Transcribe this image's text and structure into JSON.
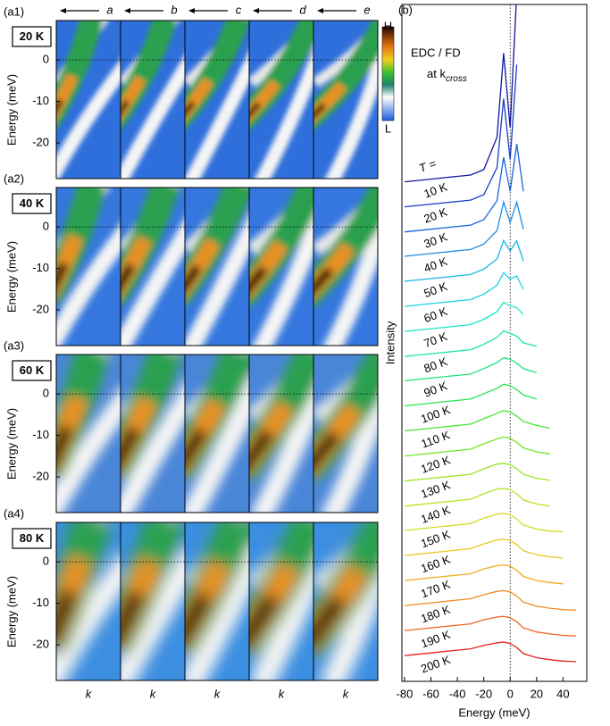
{
  "chart_data": [
    {
      "type": "heatmap",
      "panel_labels": [
        "(a1)",
        "(a2)",
        "(a3)",
        "(a4)"
      ],
      "row_titles": [
        "20 K",
        "40 K",
        "60 K",
        "80 K"
      ],
      "column_titles": [
        "a",
        "b",
        "c",
        "d",
        "e"
      ],
      "x_label": "k",
      "y_label": "Energy (meV)",
      "ylim": [
        -28.6,
        9.5
      ],
      "yticks": [
        0,
        -10,
        -20
      ],
      "refline": 0,
      "colorbar_labels": [
        "H",
        "L"
      ]
    },
    {
      "type": "line",
      "panel_label": "(b)",
      "title": "EDC / FD",
      "subtitle": "at k",
      "subtitle_sub": "cross",
      "legend_title": "T =",
      "x_label": "Energy (meV)",
      "y_label": "Intensity",
      "x": [
        -80,
        -70,
        -60,
        -50,
        -40,
        -30,
        -20,
        -10,
        -5,
        0,
        5,
        10,
        20,
        30,
        40,
        50
      ],
      "xlim": [
        -82,
        58
      ],
      "xticks": [
        -80,
        -60,
        -40,
        -20,
        0,
        20,
        40
      ],
      "ylim": [
        0,
        100
      ],
      "vline": 0,
      "series": [
        {
          "name": "10 K",
          "color": "#1414a0",
          "values": [
            73.8,
            74.0,
            74.2,
            74.4,
            74.6,
            74.8,
            75.6,
            80.4,
            92.8,
            81.8,
            101.8,
            null,
            null,
            null,
            null,
            null
          ]
        },
        {
          "name": "20 K",
          "color": "#1a3cc8",
          "values": [
            70.1,
            70.3,
            70.5,
            70.7,
            70.9,
            71.1,
            71.9,
            75.9,
            86.1,
            77.1,
            91.1,
            null,
            null,
            null,
            null,
            null
          ]
        },
        {
          "name": "30 K",
          "color": "#1a64dc",
          "values": [
            66.4,
            66.6,
            66.8,
            67.0,
            67.2,
            67.4,
            68.2,
            71.0,
            77.4,
            72.4,
            79.4,
            72.4,
            null,
            null,
            null,
            null
          ]
        },
        {
          "name": "40 K",
          "color": "#1a8ce6",
          "values": [
            62.8,
            63.0,
            63.2,
            63.4,
            63.6,
            63.8,
            64.6,
            66.6,
            70.8,
            67.8,
            70.8,
            66.8,
            null,
            null,
            null,
            null
          ]
        },
        {
          "name": "50 K",
          "color": "#1ab4e6",
          "values": [
            59.1,
            59.3,
            59.5,
            59.7,
            59.9,
            60.1,
            60.9,
            62.4,
            65.1,
            63.6,
            65.1,
            62.1,
            null,
            null,
            null,
            null
          ]
        },
        {
          "name": "60 K",
          "color": "#1ad2e6",
          "values": [
            55.4,
            55.6,
            55.8,
            56.0,
            56.2,
            56.4,
            57.2,
            58.5,
            60.4,
            59.4,
            59.9,
            57.9,
            null,
            null,
            null,
            null
          ]
        },
        {
          "name": "70 K",
          "color": "#1ae6c8",
          "values": [
            51.7,
            51.9,
            52.1,
            52.3,
            52.5,
            52.7,
            53.5,
            54.6,
            56.0,
            55.5,
            55.2,
            54.2,
            null,
            null,
            null,
            null
          ]
        },
        {
          "name": "80 K",
          "color": "#1ae6a0",
          "values": [
            48.0,
            48.2,
            48.4,
            48.6,
            48.8,
            49.0,
            49.8,
            50.8,
            51.8,
            51.4,
            51.0,
            50.0,
            49.5,
            null,
            null,
            null
          ]
        },
        {
          "name": "90 K",
          "color": "#1ee678",
          "values": [
            44.4,
            44.6,
            44.8,
            45.0,
            45.2,
            45.4,
            46.2,
            47.1,
            47.8,
            47.6,
            47.0,
            46.2,
            45.6,
            null,
            null,
            null
          ]
        },
        {
          "name": "100 K",
          "color": "#28e650",
          "values": [
            40.7,
            40.9,
            41.1,
            41.3,
            41.5,
            41.7,
            42.5,
            43.3,
            43.9,
            43.7,
            43.1,
            42.3,
            41.7,
            null,
            null,
            null
          ]
        },
        {
          "name": "110 K",
          "color": "#46e632",
          "values": [
            37.0,
            37.2,
            37.4,
            37.6,
            37.8,
            38.0,
            38.8,
            39.6,
            40.0,
            39.8,
            39.2,
            38.4,
            37.8,
            37.4,
            null,
            null
          ]
        },
        {
          "name": "120 K",
          "color": "#6ee628",
          "values": [
            33.3,
            33.5,
            33.7,
            33.9,
            34.1,
            34.3,
            35.1,
            35.8,
            36.1,
            35.9,
            35.3,
            34.5,
            33.9,
            33.6,
            null,
            null
          ]
        },
        {
          "name": "130 K",
          "color": "#96e61e",
          "values": [
            29.6,
            29.8,
            30.0,
            30.2,
            30.4,
            30.6,
            31.4,
            32.1,
            32.2,
            32.0,
            31.4,
            30.6,
            30.0,
            29.7,
            null,
            null
          ]
        },
        {
          "name": "140 K",
          "color": "#b4e61e",
          "values": [
            25.9,
            26.1,
            26.3,
            26.5,
            26.7,
            26.9,
            27.7,
            28.4,
            28.5,
            28.3,
            27.7,
            26.8,
            26.2,
            25.9,
            null,
            null
          ]
        },
        {
          "name": "150 K",
          "color": "#d2dc1e",
          "values": [
            22.3,
            22.5,
            22.7,
            22.9,
            23.1,
            23.3,
            24.1,
            24.7,
            24.8,
            24.6,
            24.0,
            23.1,
            22.5,
            22.2,
            22.1,
            null
          ]
        },
        {
          "name": "160 K",
          "color": "#e6c81e",
          "values": [
            18.6,
            18.8,
            19.0,
            19.2,
            19.4,
            19.6,
            20.3,
            20.9,
            21.0,
            20.8,
            20.2,
            19.3,
            18.7,
            18.4,
            18.2,
            null
          ]
        },
        {
          "name": "170 K",
          "color": "#f0aa1e",
          "values": [
            14.9,
            15.1,
            15.3,
            15.5,
            15.7,
            15.9,
            16.6,
            17.1,
            17.2,
            17.0,
            16.4,
            15.5,
            14.9,
            14.6,
            14.4,
            null
          ]
        },
        {
          "name": "180 K",
          "color": "#f08c1e",
          "values": [
            11.2,
            11.4,
            11.6,
            11.8,
            12.0,
            12.2,
            12.8,
            13.3,
            13.4,
            13.2,
            12.6,
            11.7,
            11.1,
            10.8,
            10.6,
            10.5
          ]
        },
        {
          "name": "190 K",
          "color": "#f0641e",
          "values": [
            7.5,
            7.7,
            7.9,
            8.1,
            8.3,
            8.5,
            9.1,
            9.5,
            9.6,
            9.4,
            8.8,
            7.9,
            7.3,
            7.0,
            6.8,
            6.7
          ]
        },
        {
          "name": "200 K",
          "color": "#e61e1e",
          "values": [
            3.8,
            4.0,
            4.2,
            4.4,
            4.6,
            4.8,
            5.3,
            5.7,
            5.8,
            5.6,
            5.0,
            4.1,
            3.5,
            3.2,
            3.0,
            2.9
          ]
        }
      ]
    }
  ]
}
